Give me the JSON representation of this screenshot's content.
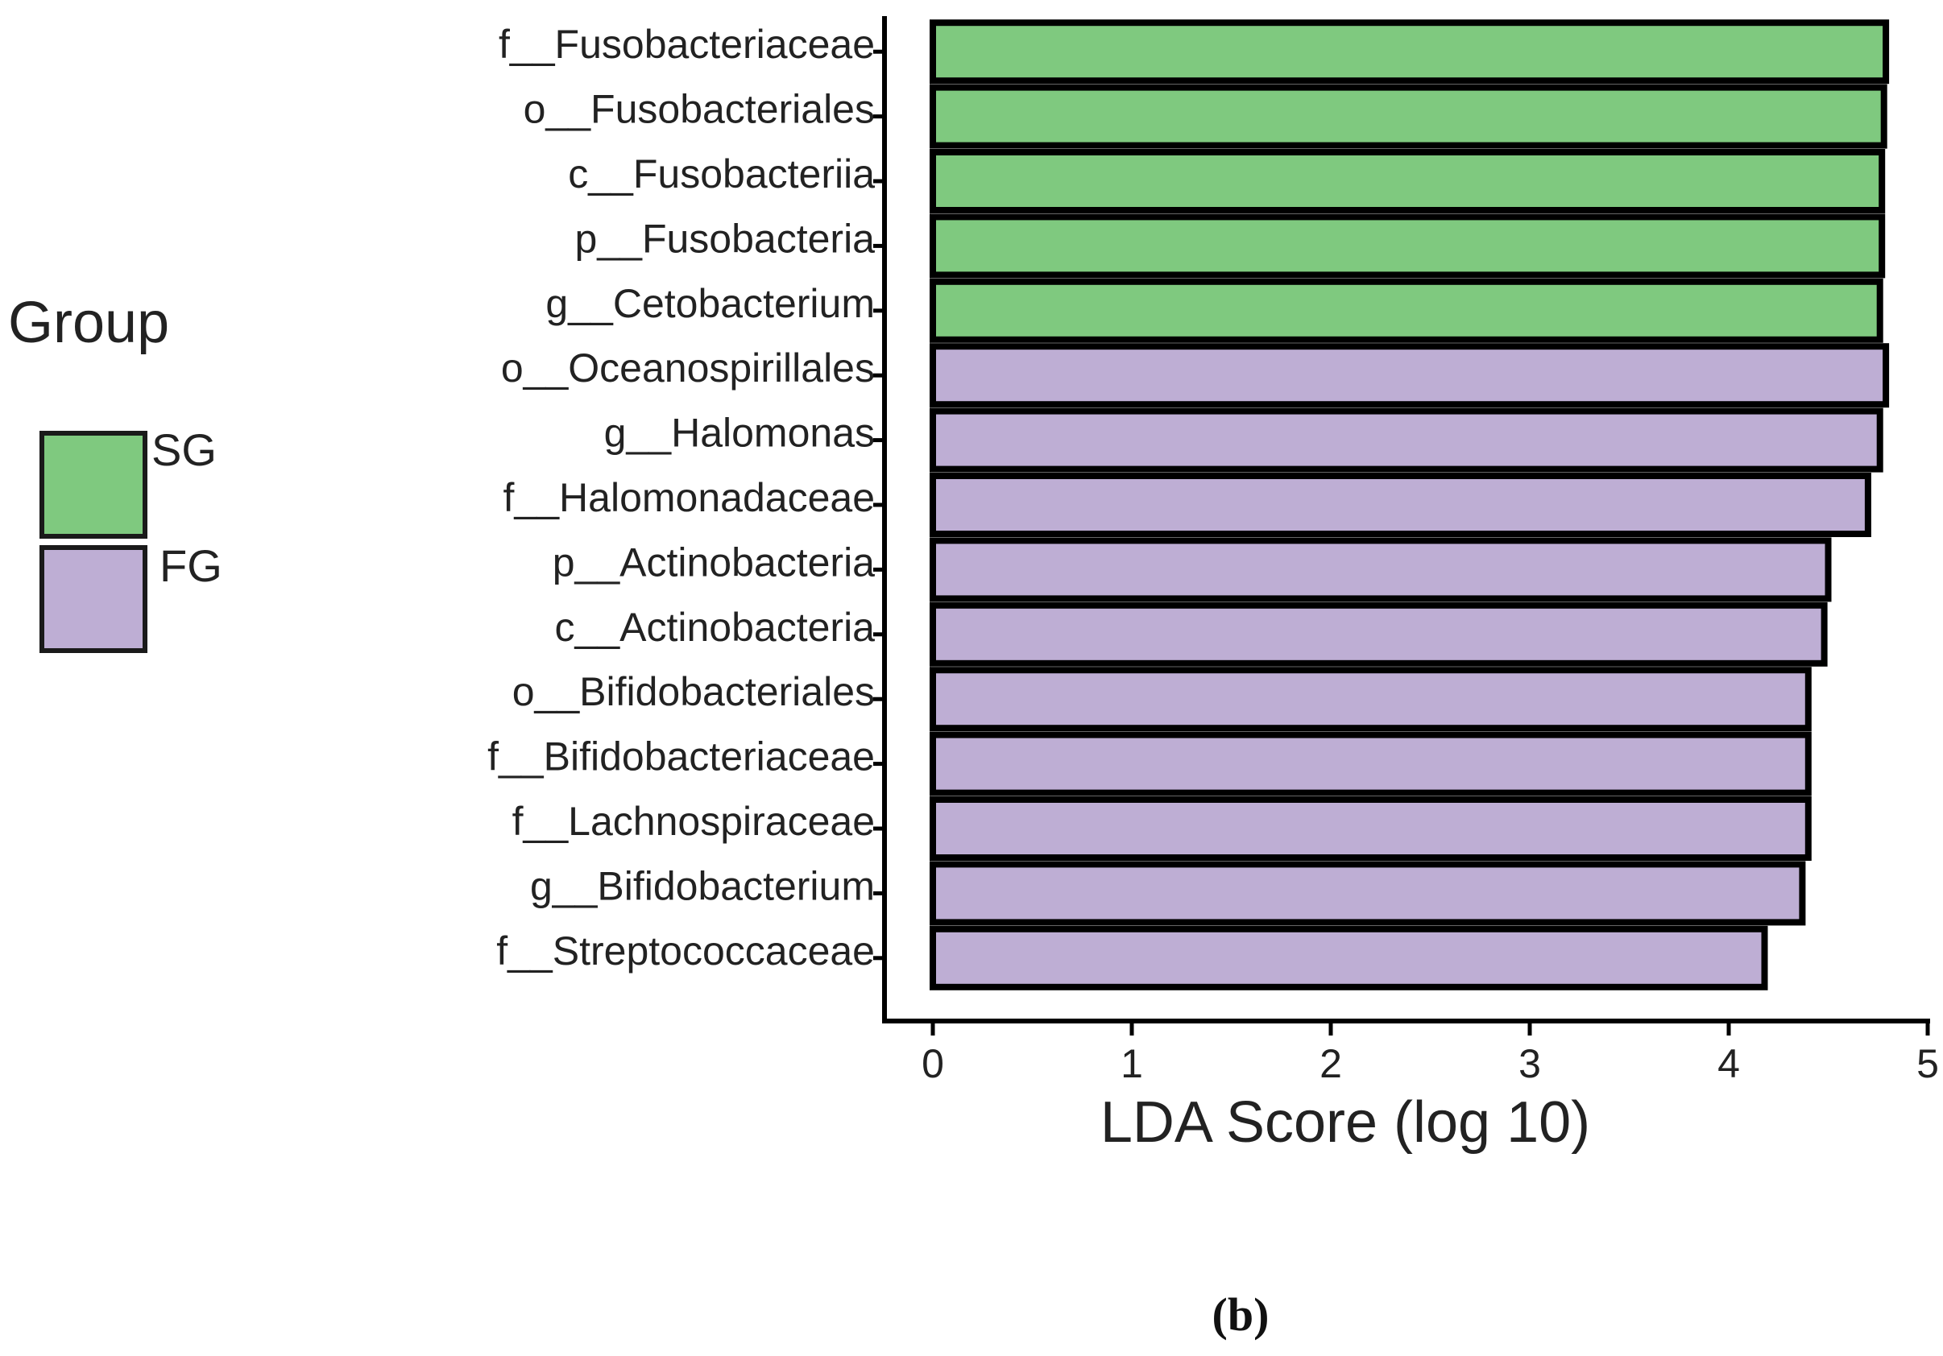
{
  "chart_data": {
    "type": "bar",
    "orientation": "horizontal",
    "title": "",
    "xlabel": "LDA Score (log 10)",
    "ylabel": "",
    "xlim": [
      0,
      5
    ],
    "xticks": [
      0,
      1,
      2,
      3,
      4,
      5
    ],
    "legend": {
      "title": "Group",
      "placement": "left",
      "entries": [
        {
          "name": "SG",
          "color": "#7fc97f"
        },
        {
          "name": "FG",
          "color": "#beaed4"
        }
      ]
    },
    "categories": [
      "f__Fusobacteriaceae",
      "o__Fusobacteriales",
      "c__Fusobacteriia",
      "p__Fusobacteria",
      "g__Cetobacterium",
      "o__Oceanospirillales",
      "g__Halomonas",
      "f__Halomonadaceae",
      "p__Actinobacteria",
      "c__Actinobacteria",
      "o__Bifidobacteriales",
      "f__Bifidobacteriaceae",
      "f__Lachnospiraceae",
      "g__Bifidobacterium",
      "f__Streptococcaceae"
    ],
    "values": [
      4.79,
      4.78,
      4.77,
      4.77,
      4.76,
      4.79,
      4.76,
      4.7,
      4.5,
      4.48,
      4.4,
      4.4,
      4.4,
      4.37,
      4.18
    ],
    "groups": [
      "SG",
      "SG",
      "SG",
      "SG",
      "SG",
      "FG",
      "FG",
      "FG",
      "FG",
      "FG",
      "FG",
      "FG",
      "FG",
      "FG",
      "FG"
    ],
    "bar_stroke": "#000000",
    "panel_label": "(b)"
  }
}
